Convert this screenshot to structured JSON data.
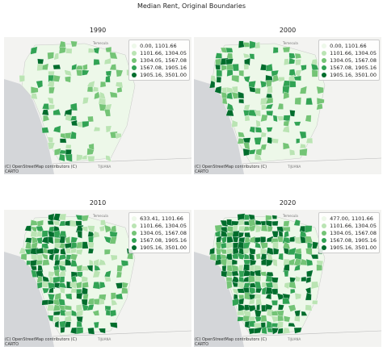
{
  "title": "Median Rent, Original Boundaries",
  "legend_colors": [
    "#edf8e9",
    "#bae4b3",
    "#74c476",
    "#31a354",
    "#006d2c"
  ],
  "attribution": "(C) OpenStreetMap contributors (C) CARTO",
  "place_labels": [
    "Temecula",
    "TIJUANA"
  ],
  "panels": [
    {
      "title": "1990",
      "legend": [
        "0.00, 1101.66",
        "1101.66, 1304.05",
        "1304.05, 1567.08",
        "1567.08, 1905.16",
        "1905.16, 3501.00"
      ]
    },
    {
      "title": "2000",
      "legend": [
        "0.00, 1101.66",
        "1101.66, 1304.05",
        "1304.05, 1567.08",
        "1567.08, 1905.16",
        "1905.16, 3501.00"
      ]
    },
    {
      "title": "2010",
      "legend": [
        "633.41, 1101.66",
        "1101.66, 1304.05",
        "1304.05, 1567.08",
        "1567.08, 1905.16",
        "1905.16, 3501.00"
      ]
    },
    {
      "title": "2020",
      "legend": [
        "477.00, 1101.66",
        "1101.66, 1304.05",
        "1304.05, 1567.08",
        "1567.08, 1905.16",
        "1905.16, 3501.00"
      ]
    }
  ]
}
